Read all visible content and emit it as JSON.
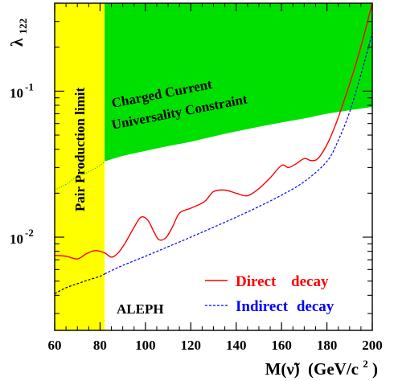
{
  "chart_data": {
    "type": "line",
    "x_ticks": [
      60,
      80,
      100,
      120,
      140,
      160,
      180,
      200
    ],
    "y_ticks": [
      {
        "base": "10",
        "exp": "-2",
        "value": 0.01
      },
      {
        "base": "10",
        "exp": "-1",
        "value": 0.1
      }
    ],
    "xlim": [
      60,
      200
    ],
    "ylim": [
      0.0023,
      0.4
    ],
    "y_scale": "log",
    "ylabel_base": "λ",
    "ylabel_sub": "122",
    "xlabel_main": "M(ν̃)",
    "xlabel_unit": "(GeV/c",
    "xlabel_exp": "2",
    "xlabel_close": ")",
    "experiment_label": "ALEPH",
    "regions": {
      "pair_production": {
        "label": "Pair Production limit",
        "x_max": 82,
        "color": "#ffff00"
      },
      "charged_current": {
        "label_line1": "Charged Current",
        "label_line2": "Universality Constraint",
        "color": "#00e000",
        "lower_boundary": {
          "x": [
            82,
            90,
            100,
            110,
            120,
            130,
            140,
            150,
            160,
            170,
            180,
            190,
            200
          ],
          "y": [
            0.033,
            0.036,
            0.039,
            0.042,
            0.045,
            0.049,
            0.053,
            0.057,
            0.061,
            0.065,
            0.07,
            0.074,
            0.078
          ]
        }
      }
    },
    "series": [
      {
        "name_main": "Direct",
        "name_rest": "decay",
        "color": "#ff0000",
        "style": "solid",
        "x": [
          60,
          65,
          70,
          74,
          78,
          82,
          85,
          88,
          91,
          95,
          98,
          101,
          104,
          106,
          109,
          112,
          115,
          120,
          126,
          130,
          135,
          140,
          145,
          150,
          155,
          160,
          163,
          166,
          170,
          173,
          176,
          180,
          184,
          188,
          192,
          196,
          199,
          200
        ],
        "y": [
          0.0075,
          0.0074,
          0.0071,
          0.0077,
          0.0081,
          0.0078,
          0.0073,
          0.0078,
          0.0091,
          0.0117,
          0.0137,
          0.0131,
          0.0107,
          0.0096,
          0.0099,
          0.0118,
          0.0146,
          0.0158,
          0.0175,
          0.0205,
          0.021,
          0.02,
          0.0192,
          0.0215,
          0.0255,
          0.031,
          0.03,
          0.0315,
          0.0345,
          0.0335,
          0.0345,
          0.043,
          0.06,
          0.09,
          0.14,
          0.23,
          0.35,
          0.4
        ]
      },
      {
        "name_main": "Indirect",
        "name_rest": "decay",
        "color": "#0000ff",
        "style": "dashed",
        "x": [
          82,
          90,
          100,
          110,
          120,
          130,
          140,
          150,
          160,
          170,
          180,
          185,
          190,
          195,
          200
        ],
        "y": [
          0.0056,
          0.0064,
          0.0074,
          0.0086,
          0.01,
          0.0117,
          0.0137,
          0.0162,
          0.0194,
          0.024,
          0.033,
          0.046,
          0.072,
          0.13,
          0.25
        ]
      },
      {
        "name_main": "",
        "name_rest": "",
        "color": "#000000",
        "style": "dashed",
        "x": [
          60,
          65,
          70,
          75,
          80,
          82
        ],
        "y": [
          0.0041,
          0.0045,
          0.0048,
          0.0051,
          0.0054,
          0.0056
        ]
      },
      {
        "name_main": "",
        "name_rest": "",
        "color": "#00c000",
        "style": "dotted",
        "x": [
          60,
          65,
          70,
          75,
          80,
          82
        ],
        "y": [
          0.021,
          0.023,
          0.026,
          0.028,
          0.031,
          0.033
        ]
      }
    ]
  }
}
